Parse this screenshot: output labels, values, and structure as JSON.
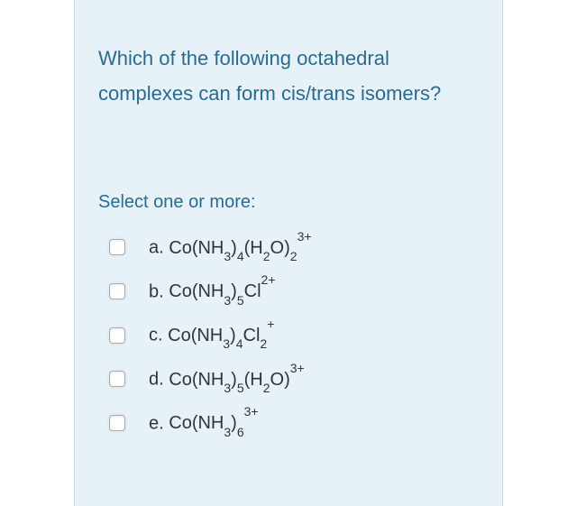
{
  "colors": {
    "panel_bg": "#e6f2f8",
    "panel_border": "#c3d8e2",
    "text_accent": "#2a6a8e",
    "text_body": "#333333",
    "page_bg": "#ffffff"
  },
  "typography": {
    "question_fontsize_pt": 16,
    "prompt_fontsize_pt": 15,
    "option_fontsize_pt": 15,
    "font_family": "Arial"
  },
  "question": "Which of the following octahedral complexes can form cis/trans isomers?",
  "prompt": "Select one or more:",
  "options": [
    {
      "letter": "a.",
      "formula_html": "Co(NH<sub>3</sub>)<sub>4</sub>(H<sub>2</sub>O)<sub>2</sub><sup>3+</sup>",
      "checked": false
    },
    {
      "letter": "b.",
      "formula_html": "Co(NH<sub>3</sub>)<sub>5</sub>Cl<sup>2+</sup>",
      "checked": false
    },
    {
      "letter": "c.",
      "formula_html": "Co(NH<sub>3</sub>)<sub>4</sub>Cl<sub>2</sub><sup>+</sup>",
      "checked": false
    },
    {
      "letter": "d.",
      "formula_html": "Co(NH<sub>3</sub>)<sub>5</sub>(H<sub>2</sub>O)<sup>3+</sup>",
      "checked": false
    },
    {
      "letter": "e.",
      "formula_html": "Co(NH<sub>3</sub>)<sub>6</sub><sup>3+</sup>",
      "checked": false
    }
  ]
}
